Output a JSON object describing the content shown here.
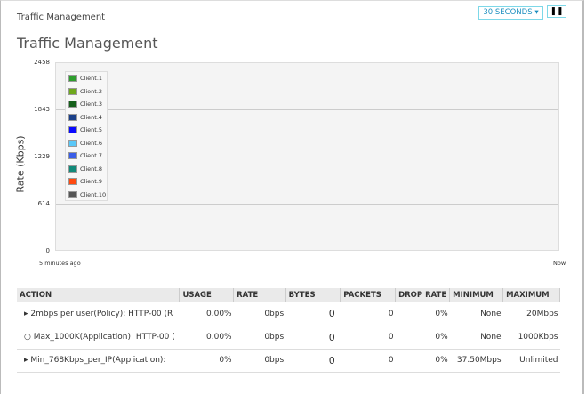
{
  "breadcrumb": "Traffic Management",
  "controls": {
    "interval": "30 SECONDS",
    "pause": "❚❚"
  },
  "page_title": "Traffic Management",
  "chart_data": {
    "type": "line",
    "ylabel": "Rate (Kbps)",
    "yticks": [
      "2458",
      "1843",
      "1229",
      "614",
      "0"
    ],
    "ylim": [
      0,
      2458
    ],
    "xticks": [
      "5 minutes ago",
      "Now"
    ],
    "grid": true,
    "legend_position": "top-left",
    "series": [
      {
        "name": "Client.1",
        "color": "#2e9e2e",
        "values": []
      },
      {
        "name": "Client.2",
        "color": "#6ea81c",
        "values": []
      },
      {
        "name": "Client.3",
        "color": "#155f1a",
        "values": []
      },
      {
        "name": "Client.4",
        "color": "#1a3f88",
        "values": []
      },
      {
        "name": "Client.5",
        "color": "#0a0aff",
        "values": []
      },
      {
        "name": "Client.6",
        "color": "#5ac8f8",
        "values": []
      },
      {
        "name": "Client.7",
        "color": "#3a5ee8",
        "values": []
      },
      {
        "name": "Client.8",
        "color": "#118a7a",
        "values": []
      },
      {
        "name": "Client.9",
        "color": "#ff4a10",
        "values": []
      },
      {
        "name": "Client.10",
        "color": "#555555",
        "values": []
      }
    ]
  },
  "table": {
    "headers": [
      "ACTION",
      "USAGE",
      "RATE",
      "BYTES",
      "PACKETS",
      "DROP RATE",
      "MINIMUM",
      "MAXIMUM"
    ],
    "rows": [
      {
        "icon": "▸",
        "action": "2mbps per user(Policy): HTTP-00 (R",
        "usage": "0.00%",
        "rate": "0bps",
        "bytes": "0",
        "packets": "0",
        "drop": "0%",
        "min": "None",
        "max": "20Mbps"
      },
      {
        "icon": "○",
        "action": "Max_1000K(Application): HTTP-00 (",
        "usage": "0.00%",
        "rate": "0bps",
        "bytes": "0",
        "packets": "0",
        "drop": "0%",
        "min": "None",
        "max": "1000Kbps"
      },
      {
        "icon": "▸",
        "action": "Min_768Kbps_per_IP(Application): ",
        "usage": "0%",
        "rate": "0bps",
        "bytes": "0",
        "packets": "0",
        "drop": "0%",
        "min": "37.50Mbps",
        "max": "Unlimited"
      }
    ]
  }
}
